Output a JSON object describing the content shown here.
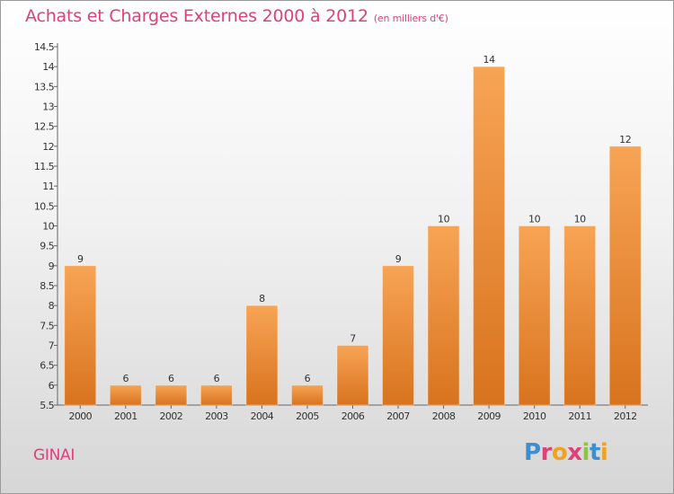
{
  "header": {
    "title": "Achats et Charges Externes 2000 à 2012",
    "subtitle": "(en milliers d'€)"
  },
  "footer": {
    "town": "GINAI",
    "logo_letters": [
      {
        "char": "P",
        "color": "#3b8fd1"
      },
      {
        "char": "r",
        "color": "#e0407a"
      },
      {
        "char": "o",
        "color": "#f2a21c"
      },
      {
        "char": "x",
        "color": "#e0407a"
      },
      {
        "char": "i",
        "color": "#8cc63f"
      },
      {
        "char": "t",
        "color": "#3b8fd1"
      },
      {
        "char": "i",
        "color": "#f2a21c"
      }
    ]
  },
  "chart_data": {
    "type": "bar",
    "categories": [
      "2000",
      "2001",
      "2002",
      "2003",
      "2004",
      "2005",
      "2006",
      "2007",
      "2008",
      "2009",
      "2010",
      "2011",
      "2012"
    ],
    "values": [
      9,
      6,
      6,
      6,
      8,
      6,
      7,
      9,
      10,
      14,
      10,
      10,
      12
    ],
    "data_labels": [
      "9",
      "6",
      "6",
      "6",
      "8",
      "6",
      "7",
      "9",
      "10",
      "14",
      "10",
      "10",
      "12"
    ],
    "ylim": [
      5.5,
      14.5
    ],
    "yticks": [
      "5.5",
      "6",
      "6.5",
      "7",
      "7.5",
      "8",
      "8.5",
      "9",
      "9.5",
      "10",
      "10.5",
      "11",
      "11.5",
      "12",
      "12.5",
      "13",
      "13.5",
      "14",
      "14.5"
    ],
    "bar_color_top": "#f7a455",
    "bar_color_bottom": "#d8731e",
    "grid": false,
    "xlabel": "",
    "ylabel": ""
  }
}
